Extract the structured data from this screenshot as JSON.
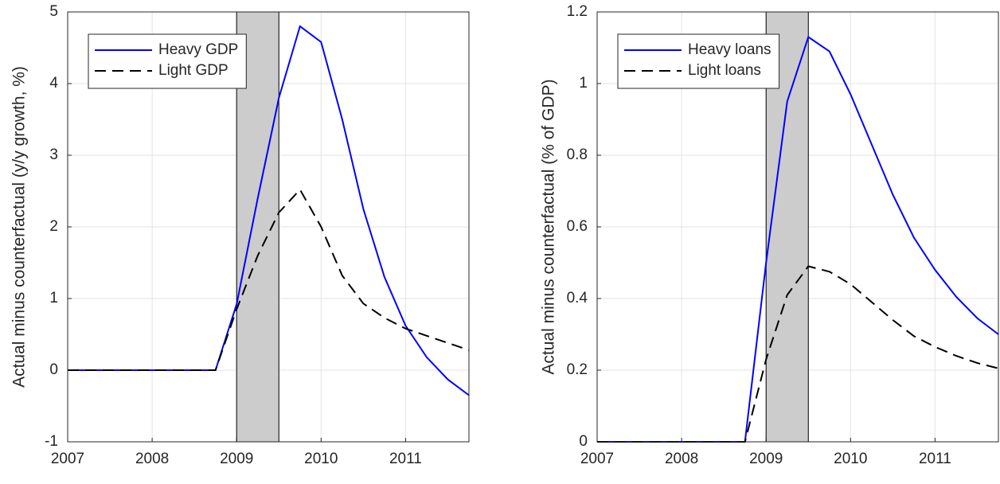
{
  "chart_data": [
    {
      "type": "line",
      "ylabel": "Actual minus counterfactual (y/y growth, %)",
      "x": [
        2007,
        2007.25,
        2007.5,
        2007.75,
        2008,
        2008.25,
        2008.5,
        2008.75,
        2009,
        2009.25,
        2009.5,
        2009.75,
        2010,
        2010.25,
        2010.5,
        2010.75,
        2011,
        2011.25,
        2011.5,
        2011.75
      ],
      "series": [
        {
          "name": "Heavy GDP",
          "color": "#0000ff",
          "style": "solid",
          "values": [
            0,
            0,
            0,
            0,
            0,
            0,
            0,
            0,
            0.92,
            2.4,
            3.8,
            4.8,
            4.58,
            3.5,
            2.25,
            1.3,
            0.62,
            0.18,
            -0.13,
            -0.35
          ]
        },
        {
          "name": "Light GDP",
          "color": "#000000",
          "style": "dashed",
          "values": [
            0,
            0,
            0,
            0,
            0,
            0,
            0,
            0,
            0.85,
            1.6,
            2.2,
            2.52,
            2.0,
            1.32,
            0.93,
            0.73,
            0.58,
            0.48,
            0.38,
            0.28
          ]
        }
      ],
      "shade": [
        2009,
        2009.5
      ],
      "xlim": [
        2007,
        2011.75
      ],
      "xticks": [
        2007,
        2008,
        2009,
        2010,
        2011
      ],
      "ylim": [
        -1,
        5
      ],
      "yticks": [
        -1,
        0,
        1,
        2,
        3,
        4,
        5
      ],
      "grid": true,
      "legend": "upper left"
    },
    {
      "type": "line",
      "ylabel": "Actual minus counterfactual (% of GDP)",
      "x": [
        2007,
        2007.25,
        2007.5,
        2007.75,
        2008,
        2008.25,
        2008.5,
        2008.75,
        2009,
        2009.25,
        2009.5,
        2009.75,
        2010,
        2010.25,
        2010.5,
        2010.75,
        2011,
        2011.25,
        2011.5,
        2011.75
      ],
      "series": [
        {
          "name": "Heavy loans",
          "color": "#0000ff",
          "style": "solid",
          "values": [
            0,
            0,
            0,
            0,
            0,
            0,
            0,
            0,
            0.5,
            0.95,
            1.13,
            1.09,
            0.97,
            0.83,
            0.69,
            0.57,
            0.48,
            0.405,
            0.345,
            0.3
          ]
        },
        {
          "name": "Light loans",
          "color": "#000000",
          "style": "dashed",
          "values": [
            0,
            0,
            0,
            0,
            0,
            0,
            0,
            0,
            0.23,
            0.41,
            0.49,
            0.475,
            0.44,
            0.39,
            0.34,
            0.295,
            0.265,
            0.24,
            0.22,
            0.205
          ]
        }
      ],
      "shade": [
        2009,
        2009.5
      ],
      "xlim": [
        2007,
        2011.75
      ],
      "xticks": [
        2007,
        2008,
        2009,
        2010,
        2011
      ],
      "ylim": [
        0,
        1.2
      ],
      "yticks": [
        0,
        0.2,
        0.4,
        0.6,
        0.8,
        1,
        1.2
      ],
      "grid": true,
      "legend": "upper left"
    }
  ]
}
